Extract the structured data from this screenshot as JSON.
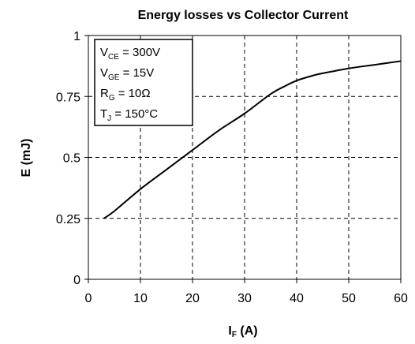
{
  "chart_data": {
    "type": "line",
    "title": "Energy losses vs Collector Current",
    "xlabel": {
      "main": "I",
      "sub": "F",
      "unit": " (A)"
    },
    "ylabel": "E (mJ)",
    "xlim": [
      0,
      60
    ],
    "ylim": [
      0,
      1
    ],
    "xticks": [
      0,
      10,
      20,
      30,
      40,
      50,
      60
    ],
    "xtick_labels": [
      "0",
      "10",
      "20",
      "30",
      "40",
      "50",
      "60"
    ],
    "yticks": [
      0,
      0.25,
      0.5,
      0.75,
      1
    ],
    "ytick_labels": [
      "0",
      "0.25",
      "0.5",
      "0.75",
      "1"
    ],
    "grid": "dashed",
    "series": [
      {
        "x": [
          3,
          5,
          10,
          15,
          20,
          25,
          30,
          35,
          38,
          40,
          43,
          45,
          50,
          55,
          60
        ],
        "y": [
          0.25,
          0.28,
          0.37,
          0.45,
          0.53,
          0.61,
          0.68,
          0.76,
          0.795,
          0.815,
          0.835,
          0.845,
          0.865,
          0.88,
          0.895
        ],
        "color": "#000000"
      }
    ],
    "conditions": [
      {
        "main": "V",
        "sub": "CE",
        "rest": " = 300V"
      },
      {
        "main": "V",
        "sub": "GE",
        "rest": " = 15V"
      },
      {
        "main": "R",
        "sub": "G",
        "rest": " = 10Ω"
      },
      {
        "main": "T",
        "sub": "J",
        "rest": " = 150°C"
      }
    ]
  }
}
